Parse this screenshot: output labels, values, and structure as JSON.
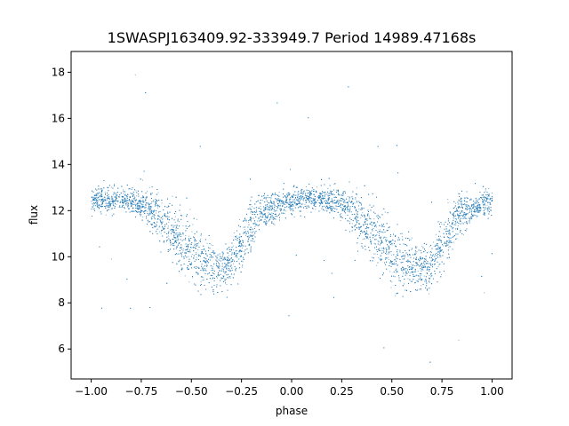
{
  "chart_data": {
    "type": "scatter",
    "title": "1SWASPJ163409.92-333949.7 Period 14989.47168s",
    "xlabel": "phase",
    "ylabel": "flux",
    "xlim": [
      -1.1,
      1.1
    ],
    "ylim": [
      4.7,
      18.9
    ],
    "xticks": [
      -1.0,
      -0.75,
      -0.5,
      -0.25,
      0.0,
      0.25,
      0.5,
      0.75,
      1.0
    ],
    "xtick_labels": [
      "−1.00",
      "−0.75",
      "−0.50",
      "−0.25",
      "0.00",
      "0.25",
      "0.50",
      "0.75",
      "1.00"
    ],
    "yticks": [
      6,
      8,
      10,
      12,
      14,
      16,
      18
    ],
    "ytick_labels": [
      "6",
      "8",
      "10",
      "12",
      "14",
      "16",
      "18"
    ],
    "grid": false,
    "point_color": "#1f77b4",
    "series": [
      {
        "x": [
          -1.0,
          -0.95,
          -0.9,
          -0.85,
          -0.8,
          -0.75,
          -0.7,
          -0.65,
          -0.6,
          -0.55,
          -0.5,
          -0.45,
          -0.4,
          -0.35,
          -0.3,
          -0.25,
          -0.2,
          -0.15,
          -0.1,
          -0.05,
          0.0,
          0.05,
          0.1,
          0.15,
          0.2,
          0.25,
          0.3,
          0.35,
          0.4,
          0.45,
          0.5,
          0.55,
          0.6,
          0.65,
          0.7,
          0.75,
          0.8,
          0.85,
          0.9,
          0.95,
          1.0
        ],
        "y": [
          12.4,
          12.5,
          12.5,
          12.5,
          12.4,
          12.3,
          12.0,
          11.6,
          11.2,
          10.7,
          10.2,
          9.8,
          9.6,
          9.5,
          9.7,
          10.5,
          11.4,
          11.9,
          12.1,
          12.3,
          12.4,
          12.5,
          12.5,
          12.5,
          12.4,
          12.3,
          12.0,
          11.6,
          11.2,
          10.7,
          10.2,
          9.8,
          9.6,
          9.5,
          9.7,
          10.5,
          11.4,
          11.9,
          12.1,
          12.3,
          12.4
        ],
        "spread": [
          0.5,
          0.5,
          0.5,
          0.5,
          0.5,
          0.6,
          0.8,
          1.0,
          1.1,
          1.2,
          1.2,
          1.1,
          1.0,
          0.9,
          0.9,
          1.0,
          0.9,
          0.7,
          0.6,
          0.5,
          0.5,
          0.5,
          0.5,
          0.5,
          0.5,
          0.6,
          0.8,
          1.0,
          1.1,
          1.2,
          1.2,
          1.1,
          1.0,
          0.9,
          0.9,
          1.0,
          0.9,
          0.7,
          0.6,
          0.5,
          0.5
        ]
      }
    ]
  }
}
